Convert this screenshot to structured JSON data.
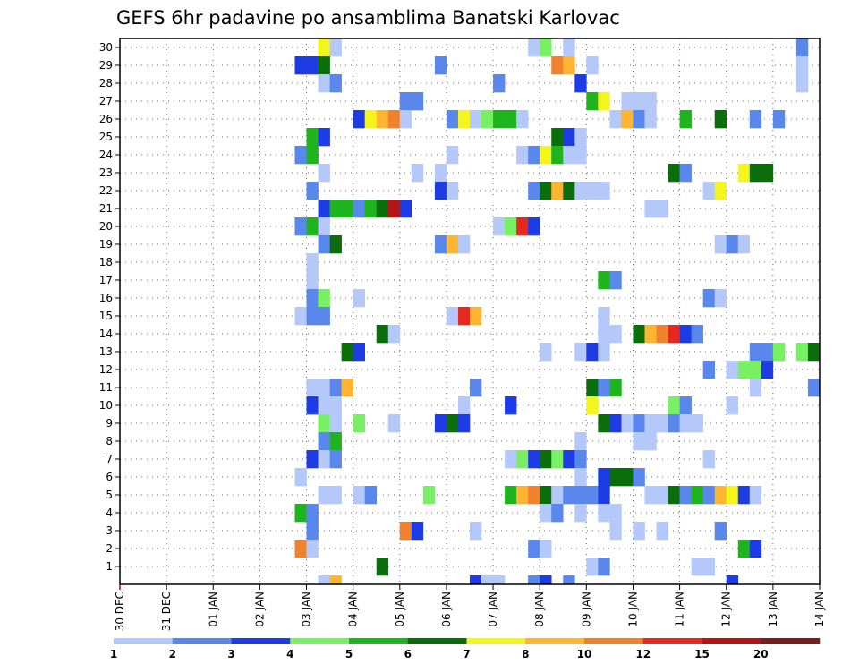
{
  "chart_data": {
    "type": "heatmap",
    "title": "GEFS 6hr padavine po ansamblima Banatski Karlovac",
    "xlabel": "",
    "ylabel": "",
    "x_tick_labels": [
      "30 DEC",
      "31 DEC",
      "01 JAN",
      "02 JAN",
      "03 JAN",
      "04 JAN",
      "05 JAN",
      "06 JAN",
      "07 JAN",
      "08 JAN",
      "09 JAN",
      "10 JAN",
      "11 JAN",
      "12 JAN",
      "13 JAN",
      "14 JAN"
    ],
    "x_range_steps": [
      0,
      60
    ],
    "y_tick_labels": [
      "1",
      "2",
      "3",
      "4",
      "5",
      "6",
      "7",
      "8",
      "9",
      "10",
      "11",
      "12",
      "13",
      "14",
      "15",
      "16",
      "17",
      "18",
      "19",
      "20",
      "21",
      "22",
      "23",
      "24",
      "25",
      "26",
      "27",
      "28",
      "29",
      "30"
    ],
    "y_range": [
      0,
      30
    ],
    "grid": true,
    "colorscale": {
      "thresholds": [
        1,
        2,
        3,
        4,
        5,
        6,
        7,
        8,
        10,
        12,
        15,
        20
      ],
      "tick_labels": [
        "1",
        "2",
        "3",
        "4",
        "5",
        "6",
        "7",
        "8",
        "10",
        "12",
        "15",
        "20"
      ],
      "colors": [
        "#b4c8fa",
        "#5a87eb",
        "#1e3ce6",
        "#78f064",
        "#1eb41e",
        "#0a6e0a",
        "#f5f51e",
        "#ffb432",
        "#f0822d",
        "#e6281e",
        "#b41414",
        "#781e1e"
      ]
    },
    "cells": [
      [
        18,
        30,
        7
      ],
      [
        19,
        30,
        1
      ],
      [
        36,
        30,
        1
      ],
      [
        37,
        30,
        4
      ],
      [
        39,
        30,
        1
      ],
      [
        59,
        30,
        2
      ],
      [
        16,
        29,
        3
      ],
      [
        17,
        29,
        3
      ],
      [
        18,
        29,
        6
      ],
      [
        28,
        29,
        2
      ],
      [
        38,
        29,
        9
      ],
      [
        39,
        29,
        8
      ],
      [
        41,
        29,
        1
      ],
      [
        59,
        29,
        1
      ],
      [
        18,
        28,
        1
      ],
      [
        19,
        28,
        2
      ],
      [
        33,
        28,
        2
      ],
      [
        40,
        28,
        3
      ],
      [
        59,
        28,
        1
      ],
      [
        25,
        27,
        2
      ],
      [
        26,
        27,
        2
      ],
      [
        41,
        27,
        5
      ],
      [
        42,
        27,
        7
      ],
      [
        44,
        27,
        1
      ],
      [
        45,
        27,
        1
      ],
      [
        46,
        27,
        1
      ],
      [
        21,
        26,
        3
      ],
      [
        22,
        26,
        7
      ],
      [
        23,
        26,
        8
      ],
      [
        24,
        26,
        9
      ],
      [
        25,
        26,
        1
      ],
      [
        29,
        26,
        2
      ],
      [
        30,
        26,
        7
      ],
      [
        31,
        26,
        1
      ],
      [
        32,
        26,
        4
      ],
      [
        33,
        26,
        5
      ],
      [
        34,
        26,
        5
      ],
      [
        35,
        26,
        1
      ],
      [
        43,
        26,
        1
      ],
      [
        44,
        26,
        8
      ],
      [
        45,
        26,
        2
      ],
      [
        46,
        26,
        1
      ],
      [
        49,
        26,
        5
      ],
      [
        52,
        26,
        6
      ],
      [
        55,
        26,
        2
      ],
      [
        57,
        26,
        2
      ],
      [
        17,
        25,
        5
      ],
      [
        18,
        25,
        3
      ],
      [
        38,
        25,
        6
      ],
      [
        39,
        25,
        3
      ],
      [
        40,
        25,
        1
      ],
      [
        16,
        24,
        2
      ],
      [
        17,
        24,
        5
      ],
      [
        29,
        24,
        1
      ],
      [
        35,
        24,
        1
      ],
      [
        36,
        24,
        2
      ],
      [
        37,
        24,
        7
      ],
      [
        38,
        24,
        5
      ],
      [
        39,
        24,
        1
      ],
      [
        40,
        24,
        1
      ],
      [
        18,
        23,
        1
      ],
      [
        26,
        23,
        1
      ],
      [
        28,
        23,
        1
      ],
      [
        48,
        23,
        6
      ],
      [
        49,
        23,
        2
      ],
      [
        54,
        23,
        7
      ],
      [
        55,
        23,
        6
      ],
      [
        56,
        23,
        6
      ],
      [
        17,
        22,
        2
      ],
      [
        28,
        22,
        3
      ],
      [
        29,
        22,
        1
      ],
      [
        36,
        22,
        2
      ],
      [
        37,
        22,
        6
      ],
      [
        38,
        22,
        8
      ],
      [
        39,
        22,
        6
      ],
      [
        40,
        22,
        1
      ],
      [
        41,
        22,
        1
      ],
      [
        42,
        22,
        1
      ],
      [
        51,
        22,
        1
      ],
      [
        52,
        22,
        7
      ],
      [
        18,
        21,
        3
      ],
      [
        19,
        21,
        5
      ],
      [
        20,
        21,
        5
      ],
      [
        21,
        21,
        2
      ],
      [
        22,
        21,
        5
      ],
      [
        23,
        21,
        6
      ],
      [
        24,
        21,
        11
      ],
      [
        25,
        21,
        3
      ],
      [
        46,
        21,
        1
      ],
      [
        47,
        21,
        1
      ],
      [
        16,
        20,
        2
      ],
      [
        17,
        20,
        5
      ],
      [
        18,
        20,
        1
      ],
      [
        33,
        20,
        1
      ],
      [
        34,
        20,
        4
      ],
      [
        35,
        20,
        10
      ],
      [
        36,
        20,
        3
      ],
      [
        18,
        19,
        2
      ],
      [
        19,
        19,
        6
      ],
      [
        28,
        19,
        2
      ],
      [
        29,
        19,
        8
      ],
      [
        30,
        19,
        1
      ],
      [
        52,
        19,
        1
      ],
      [
        53,
        19,
        2
      ],
      [
        54,
        19,
        1
      ],
      [
        17,
        18,
        1
      ],
      [
        17,
        17,
        1
      ],
      [
        42,
        17,
        5
      ],
      [
        43,
        17,
        2
      ],
      [
        17,
        16,
        2
      ],
      [
        18,
        16,
        4
      ],
      [
        21,
        16,
        1
      ],
      [
        51,
        16,
        2
      ],
      [
        52,
        16,
        1
      ],
      [
        16,
        15,
        1
      ],
      [
        17,
        15,
        2
      ],
      [
        18,
        15,
        2
      ],
      [
        29,
        15,
        1
      ],
      [
        30,
        15,
        10
      ],
      [
        31,
        15,
        8
      ],
      [
        42,
        15,
        1
      ],
      [
        42,
        14,
        1
      ],
      [
        43,
        14,
        1
      ],
      [
        23,
        14,
        6
      ],
      [
        24,
        14,
        1
      ],
      [
        45,
        14,
        6
      ],
      [
        46,
        14,
        8
      ],
      [
        47,
        14,
        9
      ],
      [
        48,
        14,
        10
      ],
      [
        49,
        14,
        3
      ],
      [
        50,
        14,
        2
      ],
      [
        20,
        13,
        6
      ],
      [
        21,
        13,
        3
      ],
      [
        37,
        13,
        1
      ],
      [
        40,
        13,
        1
      ],
      [
        41,
        13,
        3
      ],
      [
        42,
        13,
        1
      ],
      [
        55,
        13,
        2
      ],
      [
        56,
        13,
        2
      ],
      [
        57,
        13,
        4
      ],
      [
        59,
        13,
        4
      ],
      [
        60,
        13,
        6
      ],
      [
        51,
        12,
        2
      ],
      [
        53,
        12,
        1
      ],
      [
        54,
        12,
        4
      ],
      [
        55,
        12,
        4
      ],
      [
        56,
        12,
        3
      ],
      [
        17,
        11,
        1
      ],
      [
        18,
        11,
        1
      ],
      [
        19,
        11,
        2
      ],
      [
        20,
        11,
        8
      ],
      [
        31,
        11,
        2
      ],
      [
        41,
        11,
        6
      ],
      [
        42,
        11,
        2
      ],
      [
        43,
        11,
        5
      ],
      [
        55,
        11,
        1
      ],
      [
        60,
        11,
        2
      ],
      [
        17,
        10,
        3
      ],
      [
        18,
        10,
        1
      ],
      [
        19,
        10,
        1
      ],
      [
        30,
        10,
        1
      ],
      [
        34,
        10,
        3
      ],
      [
        41,
        10,
        7
      ],
      [
        48,
        10,
        4
      ],
      [
        49,
        10,
        2
      ],
      [
        53,
        10,
        1
      ],
      [
        18,
        9,
        4
      ],
      [
        19,
        9,
        1
      ],
      [
        21,
        9,
        4
      ],
      [
        24,
        9,
        1
      ],
      [
        28,
        9,
        3
      ],
      [
        29,
        9,
        6
      ],
      [
        30,
        9,
        3
      ],
      [
        42,
        9,
        6
      ],
      [
        43,
        9,
        3
      ],
      [
        44,
        9,
        1
      ],
      [
        45,
        9,
        2
      ],
      [
        46,
        9,
        1
      ],
      [
        47,
        9,
        1
      ],
      [
        48,
        9,
        2
      ],
      [
        49,
        9,
        1
      ],
      [
        50,
        9,
        1
      ],
      [
        18,
        8,
        2
      ],
      [
        19,
        8,
        5
      ],
      [
        40,
        8,
        1
      ],
      [
        45,
        8,
        1
      ],
      [
        46,
        8,
        1
      ],
      [
        17,
        7,
        3
      ],
      [
        18,
        7,
        1
      ],
      [
        19,
        7,
        2
      ],
      [
        34,
        7,
        1
      ],
      [
        35,
        7,
        4
      ],
      [
        36,
        7,
        3
      ],
      [
        37,
        7,
        6
      ],
      [
        38,
        7,
        4
      ],
      [
        39,
        7,
        3
      ],
      [
        40,
        7,
        2
      ],
      [
        51,
        7,
        1
      ],
      [
        16,
        6,
        1
      ],
      [
        40,
        6,
        1
      ],
      [
        42,
        6,
        3
      ],
      [
        43,
        6,
        6
      ],
      [
        44,
        6,
        6
      ],
      [
        45,
        6,
        2
      ],
      [
        18,
        5,
        1
      ],
      [
        19,
        5,
        1
      ],
      [
        21,
        5,
        1
      ],
      [
        22,
        5,
        2
      ],
      [
        27,
        5,
        4
      ],
      [
        34,
        5,
        5
      ],
      [
        35,
        5,
        8
      ],
      [
        36,
        5,
        9
      ],
      [
        37,
        5,
        6
      ],
      [
        38,
        5,
        1
      ],
      [
        39,
        5,
        2
      ],
      [
        40,
        5,
        2
      ],
      [
        41,
        5,
        2
      ],
      [
        42,
        5,
        3
      ],
      [
        46,
        5,
        1
      ],
      [
        47,
        5,
        1
      ],
      [
        48,
        5,
        6
      ],
      [
        49,
        5,
        2
      ],
      [
        50,
        5,
        5
      ],
      [
        51,
        5,
        2
      ],
      [
        52,
        5,
        8
      ],
      [
        53,
        5,
        7
      ],
      [
        54,
        5,
        3
      ],
      [
        55,
        5,
        1
      ],
      [
        16,
        4,
        5
      ],
      [
        17,
        4,
        2
      ],
      [
        37,
        4,
        1
      ],
      [
        38,
        4,
        2
      ],
      [
        40,
        4,
        1
      ],
      [
        42,
        4,
        1
      ],
      [
        43,
        4,
        1
      ],
      [
        17,
        3,
        2
      ],
      [
        25,
        3,
        9
      ],
      [
        26,
        3,
        3
      ],
      [
        31,
        3,
        1
      ],
      [
        43,
        3,
        1
      ],
      [
        45,
        3,
        1
      ],
      [
        47,
        3,
        1
      ],
      [
        52,
        3,
        2
      ],
      [
        16,
        2,
        9
      ],
      [
        17,
        2,
        1
      ],
      [
        36,
        2,
        2
      ],
      [
        37,
        2,
        1
      ],
      [
        54,
        2,
        5
      ],
      [
        55,
        2,
        3
      ],
      [
        23,
        1,
        6
      ],
      [
        41,
        1,
        1
      ],
      [
        42,
        1,
        2
      ],
      [
        50,
        1,
        1
      ],
      [
        51,
        1,
        1
      ],
      [
        18,
        0,
        1
      ],
      [
        19,
        0,
        8
      ],
      [
        31,
        0,
        3
      ],
      [
        32,
        0,
        1
      ],
      [
        33,
        0,
        1
      ],
      [
        36,
        0,
        2
      ],
      [
        37,
        0,
        3
      ],
      [
        39,
        0,
        2
      ],
      [
        53,
        0,
        3
      ]
    ]
  }
}
